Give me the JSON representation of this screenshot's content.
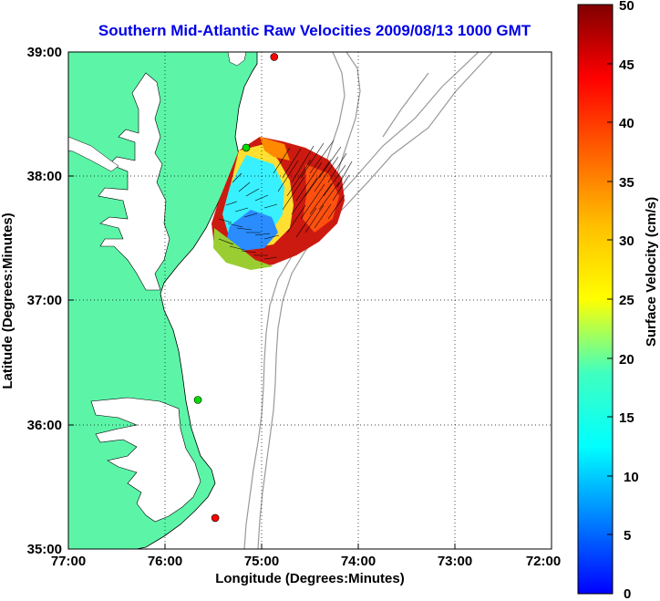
{
  "title": "Southern Mid-Atlantic Raw Velocities 2009/08/13 1000 GMT",
  "map": {
    "xlabel": "Longitude (Degrees:Minutes)",
    "ylabel": "Latitude (Degrees:Minutes)",
    "x_ticks": [
      "77:00",
      "76:00",
      "75:00",
      "74:00",
      "73:00",
      "72:00"
    ],
    "y_ticks": [
      "39:00",
      "38:00",
      "37:00",
      "36:00",
      "35:00"
    ],
    "lon_range": [
      -77,
      -72
    ],
    "lat_range": [
      35,
      39
    ],
    "land_color": "#5cf5a8",
    "coast_color": "#000000",
    "isobath_color": "#999999",
    "grid": "dotted"
  },
  "colorbar": {
    "label": "Surface Velocity (cm/s)",
    "ticks": [
      "50",
      "45",
      "40",
      "35",
      "30",
      "25",
      "20",
      "15",
      "10",
      "5",
      "0"
    ],
    "range": [
      0,
      50
    ],
    "colormap": "jet"
  },
  "stations": [
    {
      "lon": -74.87,
      "lat": 38.96,
      "color": "#ff0000"
    },
    {
      "lon": -75.16,
      "lat": 38.23,
      "color": "#00dd00"
    },
    {
      "lon": -75.66,
      "lat": 36.2,
      "color": "#00dd00"
    },
    {
      "lon": -75.48,
      "lat": 35.25,
      "color": "#ff0000"
    }
  ]
}
